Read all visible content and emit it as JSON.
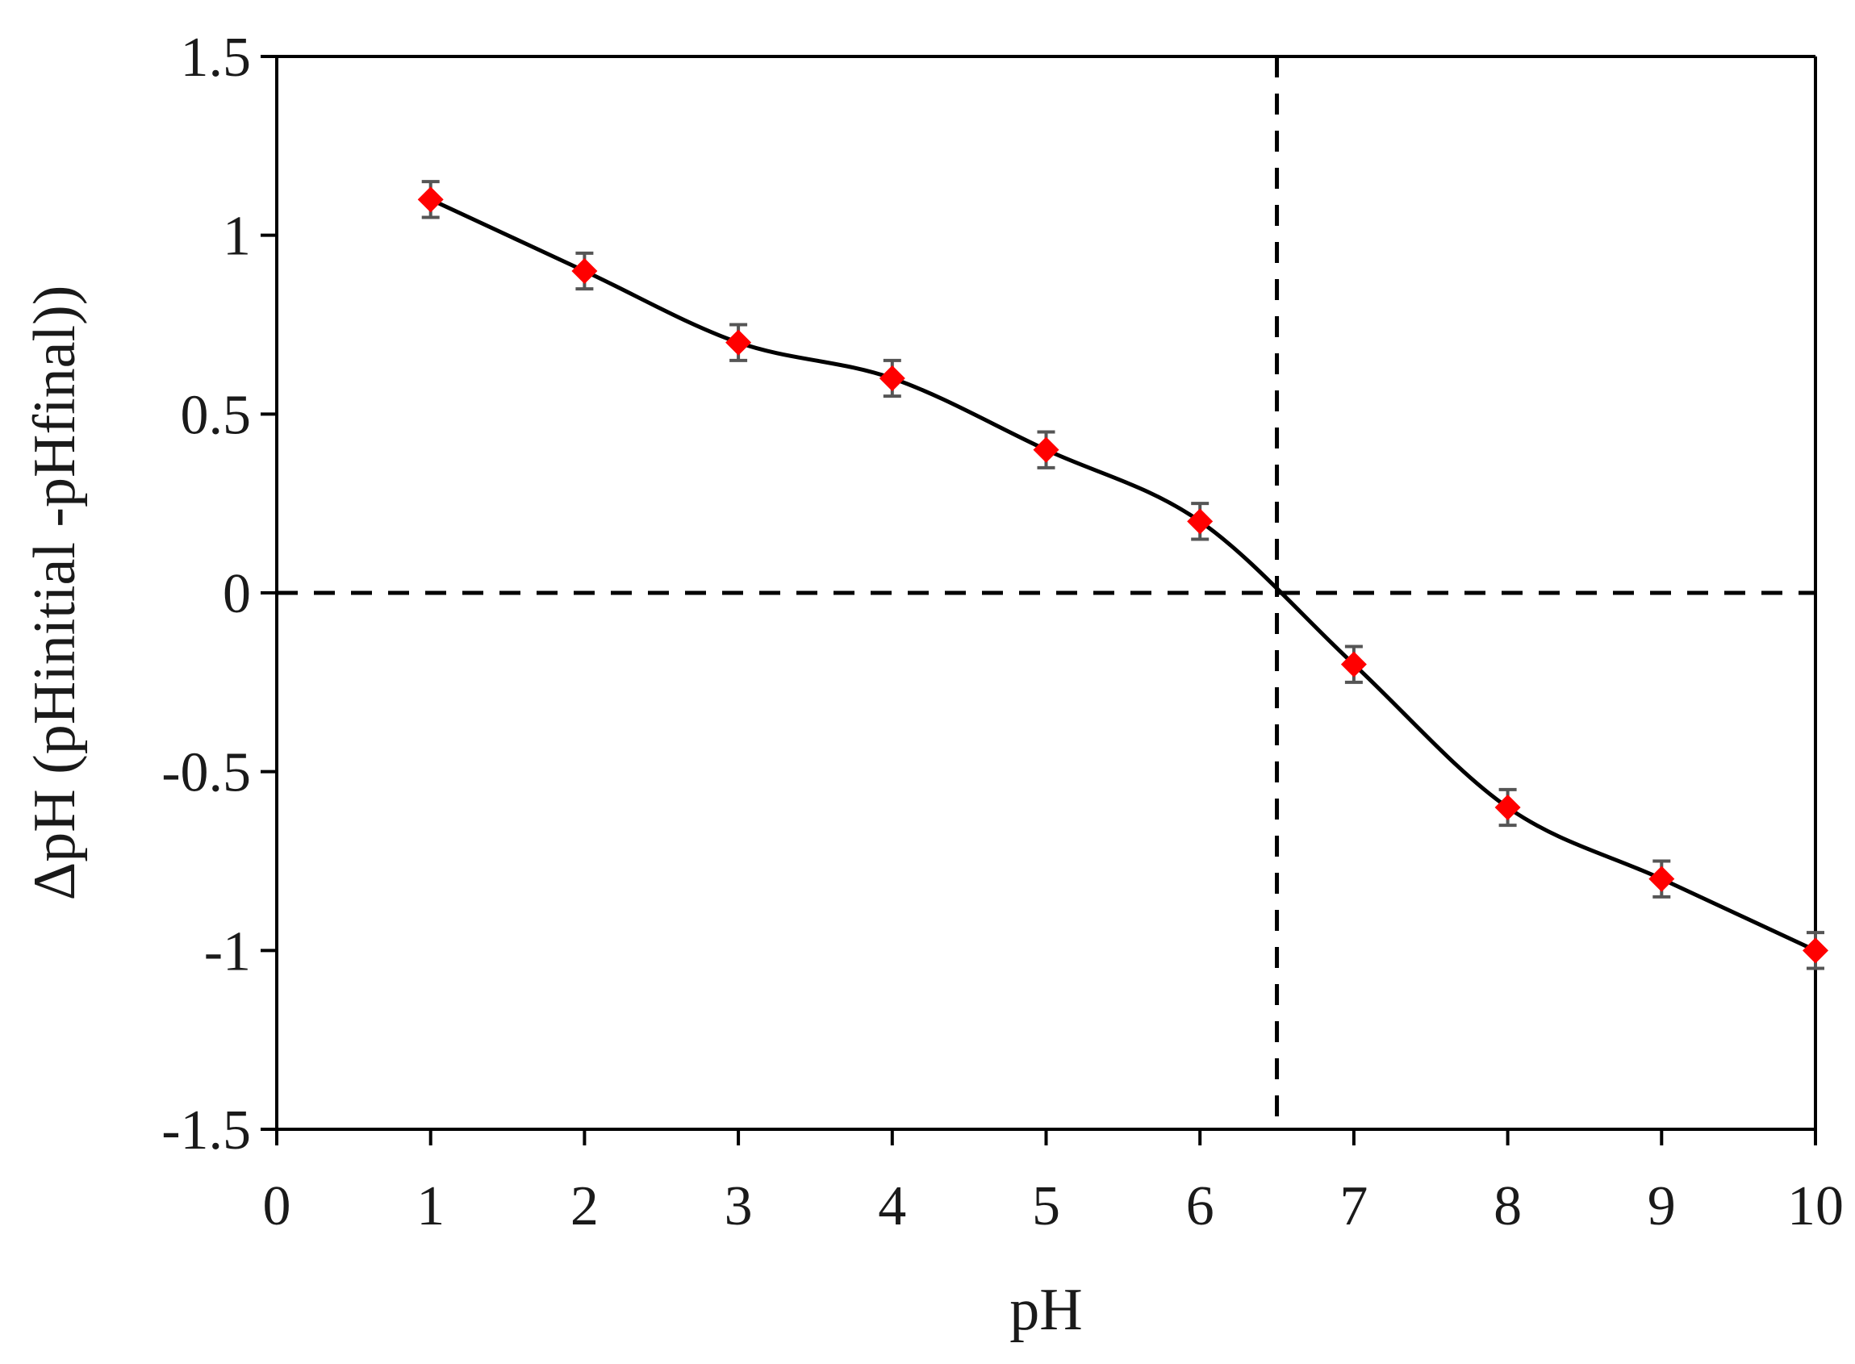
{
  "chart_data": {
    "type": "scatter",
    "title": "",
    "xlabel": "pH",
    "ylabel": "ΔpH (pHinitial -pHfinal))",
    "xlim": [
      0,
      10
    ],
    "ylim": [
      -1.5,
      1.5
    ],
    "x_ticks": [
      0,
      1,
      2,
      3,
      4,
      5,
      6,
      7,
      8,
      9,
      10
    ],
    "x_tick_labels": [
      "0",
      "1",
      "2",
      "3",
      "4",
      "5",
      "6",
      "7",
      "8",
      "9",
      "10"
    ],
    "y_ticks": [
      1.5,
      1,
      0.5,
      0,
      -0.5,
      -1,
      -1.5
    ],
    "y_tick_labels": [
      "1.5",
      "1",
      "0.5",
      "0",
      "-0.5",
      "-1",
      "-1.5"
    ],
    "grid": false,
    "legend": "none",
    "series": [
      {
        "x": [
          1,
          2,
          3,
          4,
          5,
          6,
          7,
          8,
          9,
          10
        ],
        "y": [
          1.1,
          0.9,
          0.7,
          0.6,
          0.4,
          0.2,
          -0.2,
          -0.6,
          -0.8,
          -1.0
        ],
        "error": [
          0.05,
          0.05,
          0.05,
          0.05,
          0.05,
          0.05,
          0.05,
          0.05,
          0.05,
          0.05
        ],
        "marker": "diamond",
        "marker_color": "#ff0000",
        "line": "smooth",
        "line_color": "#000000",
        "error_bar_color": "#555555"
      }
    ],
    "reference_lines": [
      {
        "orientation": "horizontal",
        "value": 0,
        "style": "dashed",
        "color": "#000000"
      },
      {
        "orientation": "vertical",
        "value": 6.5,
        "style": "dashed",
        "color": "#000000"
      }
    ]
  }
}
